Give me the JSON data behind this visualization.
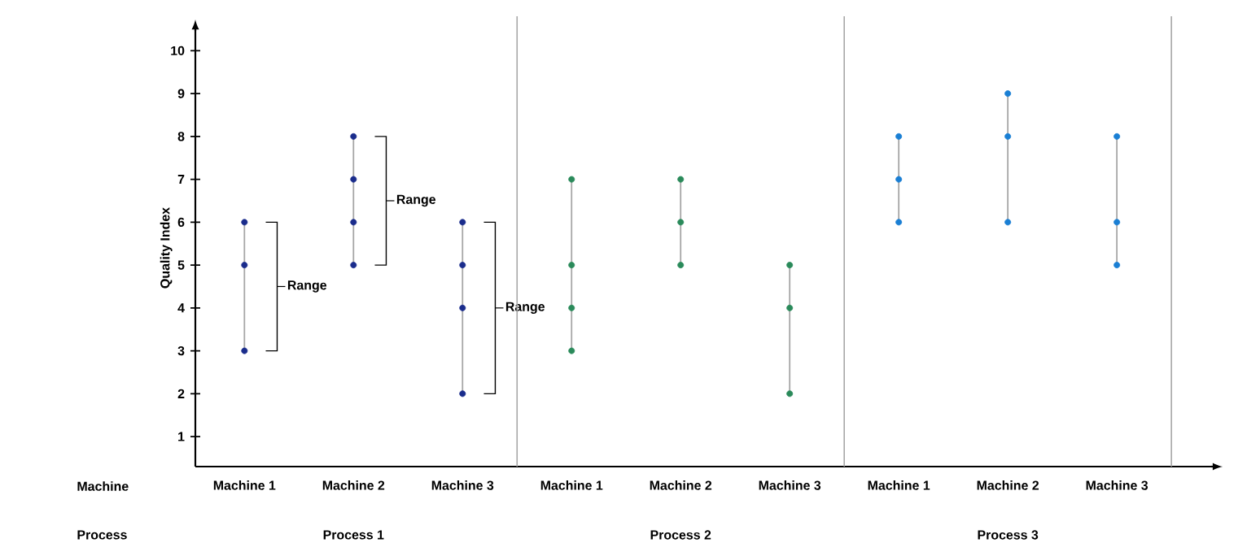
{
  "chart_data": {
    "type": "scatter",
    "ylabel": "Quality Index",
    "marker": "circle",
    "categories": [
      "Machine 1",
      "Machine 2",
      "Machine 3",
      "Machine 1",
      "Machine 2",
      "Machine 3",
      "Machine 1",
      "Machine 2",
      "Machine 3"
    ],
    "ylim": [
      0.3,
      10.5
    ],
    "yticks": [
      1,
      2,
      3,
      4,
      5,
      6,
      7,
      8,
      9,
      10
    ],
    "series": [
      {
        "colors": [
          "#1a2c8c",
          "#1a2c8c",
          "#1a2c8c",
          "#2a8a5a",
          "#2a8a5a",
          "#2a8a5a",
          "#1a7fd4",
          "#1a7fd4",
          "#1a7fd4"
        ],
        "values": [
          6,
          8,
          6,
          7,
          7,
          5,
          8,
          9,
          8
        ]
      },
      {
        "colors": [
          "#1a2c8c",
          "#1a2c8c",
          "#1a2c8c",
          "#2a8a5a",
          "#2a8a5a",
          "#2a8a5a",
          "#1a7fd4",
          "#1a7fd4",
          "#1a7fd4"
        ],
        "values": [
          5,
          7,
          5,
          5,
          6,
          4,
          7,
          8,
          6
        ]
      },
      {
        "colors": [
          "#1a2c8c",
          "#1a2c8c",
          "#1a2c8c",
          "#2a8a5a",
          "#2a8a5a",
          "#2a8a5a",
          "#1a7fd4",
          "#1a7fd4",
          "#1a7fd4"
        ],
        "values": [
          3,
          6,
          4,
          4,
          5,
          2,
          6,
          6,
          5
        ]
      },
      {
        "colors": [
          "#1a2c8c",
          "#1a2c8c",
          "#1a2c8c",
          "#2a8a5a",
          "#2a8a5a",
          "#2a8a5a",
          "#1a7fd4",
          "#1a7fd4",
          "#1a7fd4"
        ],
        "values": [
          null,
          5,
          2,
          3,
          null,
          null,
          null,
          null,
          null
        ]
      }
    ],
    "annotations": [
      "Range",
      "Range",
      "Range",
      "Machine",
      "Process",
      "Process 1",
      "Process 2",
      "Process 3"
    ]
  }
}
